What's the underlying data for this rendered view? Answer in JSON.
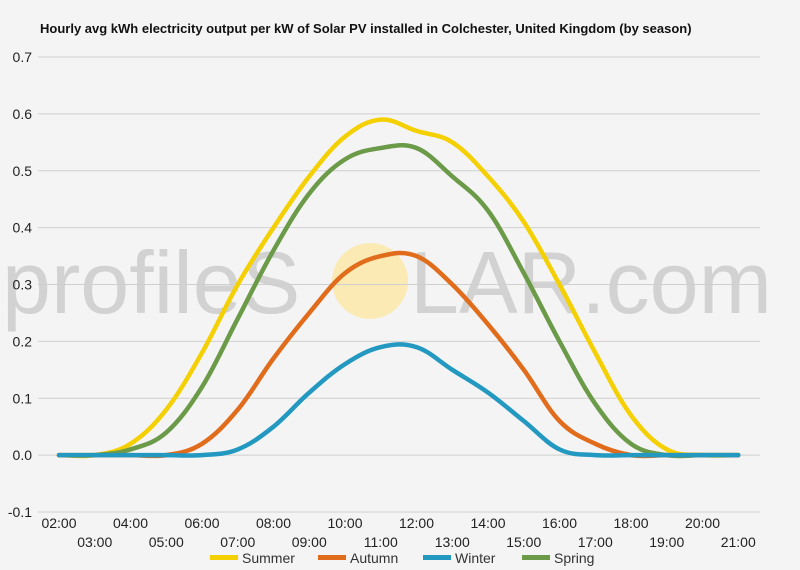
{
  "watermark": {
    "text_left": "profileS",
    "text_right": "LAR.com",
    "sun_color": "#fbe8a8"
  },
  "chart_data": {
    "type": "line",
    "title": "Hourly avg kWh electricity output per kW of Solar PV installed in Colchester, United Kingdom (by season)",
    "xlabel": "",
    "ylabel": "",
    "ylim": [
      -0.1,
      0.7
    ],
    "y_ticks": [
      "-0.1",
      "0.0",
      "0.1",
      "0.2",
      "0.3",
      "0.4",
      "0.5",
      "0.6",
      "0.7"
    ],
    "x_ticks": [
      "02:00",
      "03:00",
      "04:00",
      "05:00",
      "06:00",
      "07:00",
      "08:00",
      "09:00",
      "10:00",
      "11:00",
      "12:00",
      "13:00",
      "14:00",
      "15:00",
      "16:00",
      "17:00",
      "18:00",
      "19:00",
      "20:00",
      "21:00"
    ],
    "grid": true,
    "legend": "bottom",
    "series": [
      {
        "name": "Summer",
        "color": "#f5d000",
        "x": [
          2,
          3,
          4,
          5,
          6,
          7,
          8,
          9,
          10,
          11,
          12,
          13,
          14,
          15,
          16,
          17,
          18,
          19,
          20,
          21
        ],
        "values": [
          0.0,
          0.0,
          0.02,
          0.08,
          0.18,
          0.3,
          0.4,
          0.49,
          0.56,
          0.59,
          0.57,
          0.55,
          0.49,
          0.41,
          0.3,
          0.18,
          0.07,
          0.01,
          0.0,
          0.0
        ]
      },
      {
        "name": "Autumn",
        "color": "#e06c1c",
        "x": [
          2,
          3,
          4,
          5,
          6,
          7,
          8,
          9,
          10,
          11,
          12,
          13,
          14,
          15,
          16,
          17,
          18,
          19,
          20,
          21
        ],
        "values": [
          0.0,
          0.0,
          0.0,
          0.0,
          0.02,
          0.08,
          0.17,
          0.25,
          0.32,
          0.35,
          0.35,
          0.3,
          0.23,
          0.15,
          0.06,
          0.02,
          0.0,
          0.0,
          0.0,
          0.0
        ]
      },
      {
        "name": "Winter",
        "color": "#2398c0",
        "x": [
          2,
          3,
          4,
          5,
          6,
          7,
          8,
          9,
          10,
          11,
          12,
          13,
          14,
          15,
          16,
          17,
          18,
          19,
          20,
          21
        ],
        "values": [
          0.0,
          0.0,
          0.0,
          0.0,
          0.0,
          0.01,
          0.05,
          0.11,
          0.16,
          0.19,
          0.19,
          0.15,
          0.11,
          0.06,
          0.01,
          0.0,
          0.0,
          0.0,
          0.0,
          0.0
        ]
      },
      {
        "name": "Spring",
        "color": "#6b9a48",
        "x": [
          2,
          3,
          4,
          5,
          6,
          7,
          8,
          9,
          10,
          11,
          12,
          13,
          14,
          15,
          16,
          17,
          18,
          19,
          20,
          21
        ],
        "values": [
          0.0,
          0.0,
          0.01,
          0.04,
          0.12,
          0.24,
          0.36,
          0.46,
          0.52,
          0.54,
          0.54,
          0.49,
          0.43,
          0.32,
          0.2,
          0.09,
          0.02,
          0.0,
          0.0,
          0.0
        ]
      }
    ]
  }
}
